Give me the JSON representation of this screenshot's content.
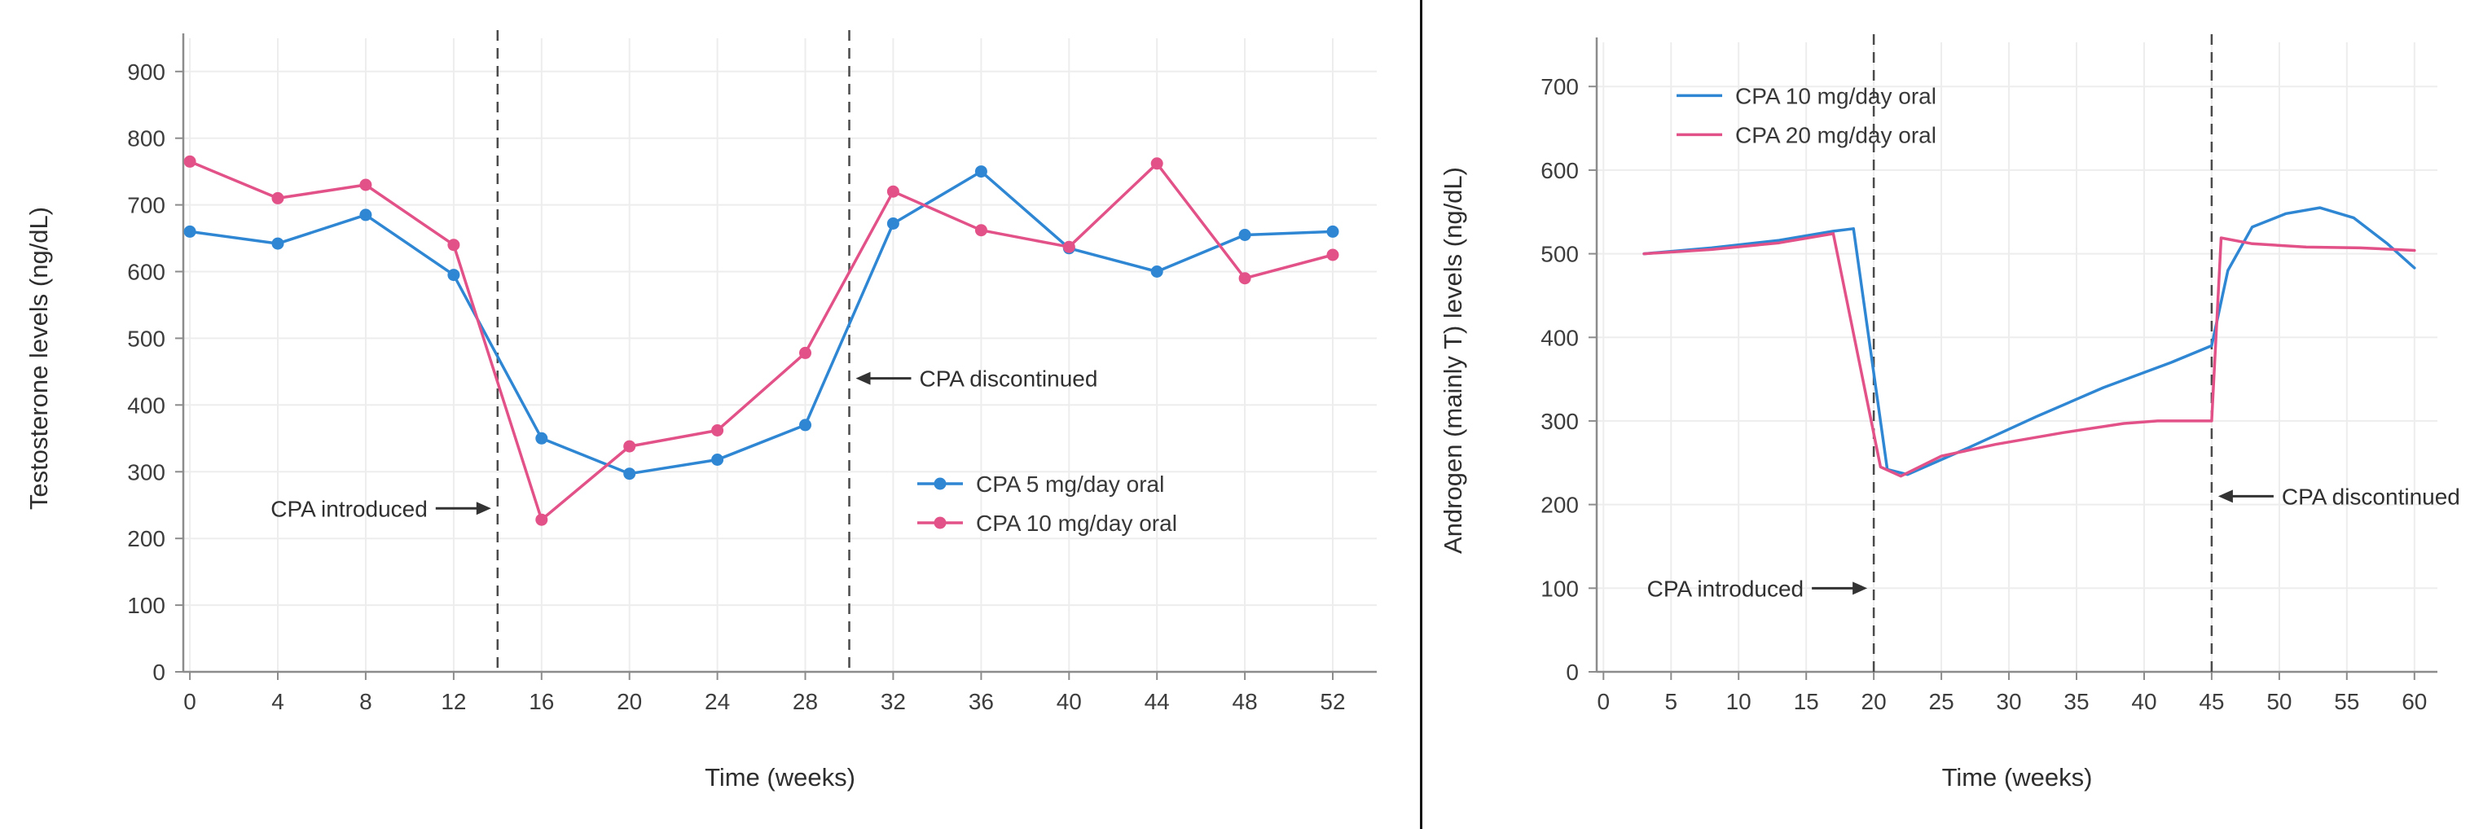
{
  "page": {
    "background": "#ffffff",
    "divider_color": "#111111"
  },
  "chart_data": [
    {
      "id": "testosterone-chart",
      "type": "line",
      "title": "",
      "xlabel": "Time (weeks)",
      "ylabel": "Testosterone levels (ng/dL)",
      "xlim": [
        -0.3,
        54.0
      ],
      "ylim": [
        0,
        940
      ],
      "xticks": [
        0,
        4,
        8,
        12,
        16,
        20,
        24,
        28,
        32,
        36,
        40,
        44,
        48,
        52
      ],
      "yticks": [
        0,
        100,
        200,
        300,
        400,
        500,
        600,
        700,
        800,
        900
      ],
      "grid": true,
      "legend": {
        "position": "inside-lower-right",
        "fx": 0.615,
        "fy": 0.7
      },
      "series": [
        {
          "name": "CPA 5 mg/day oral",
          "color": "#2f87d4",
          "markers": true,
          "x": [
            0,
            4,
            8,
            12,
            16,
            20,
            24,
            28,
            32,
            36,
            40,
            44,
            48,
            52
          ],
          "y": [
            660,
            642,
            685,
            595,
            350,
            297,
            318,
            370,
            672,
            750,
            635,
            600,
            655,
            660
          ]
        },
        {
          "name": "CPA 10 mg/day oral",
          "color": "#e25288",
          "markers": true,
          "x": [
            0,
            4,
            8,
            12,
            16,
            20,
            24,
            28,
            32,
            36,
            40,
            44,
            48,
            52
          ],
          "y": [
            765,
            710,
            730,
            640,
            228,
            338,
            362,
            478,
            720,
            662,
            637,
            762,
            590,
            625
          ]
        }
      ],
      "vlines": [
        {
          "x": 14,
          "label": "CPA introduced"
        },
        {
          "x": 30,
          "label": "CPA discontinued"
        }
      ],
      "annotations": [
        {
          "text": "CPA introduced",
          "x": 14,
          "y": 245,
          "side": "left"
        },
        {
          "text": "CPA discontinued",
          "x": 30,
          "y": 440,
          "side": "right"
        }
      ]
    },
    {
      "id": "androgen-chart",
      "type": "line",
      "title": "",
      "xlabel": "Time (weeks)",
      "ylabel": "Androgen (mainly T) levels (ng/dL)",
      "xlim": [
        -0.5,
        61.7
      ],
      "ylim": [
        0,
        745
      ],
      "xticks": [
        0,
        5,
        10,
        15,
        20,
        25,
        30,
        35,
        40,
        45,
        50,
        55,
        60
      ],
      "yticks": [
        0,
        100,
        200,
        300,
        400,
        500,
        600,
        700
      ],
      "grid": true,
      "legend": {
        "position": "inside-upper-left",
        "fx": 0.095,
        "fy": 0.075
      },
      "series": [
        {
          "name": "CPA 10 mg/day oral",
          "color": "#2f87d4",
          "markers": false,
          "x": [
            3,
            8,
            13,
            17,
            18.5,
            21,
            22.5,
            27,
            32,
            37,
            42,
            45,
            46.2,
            48,
            50.5,
            53,
            55.5,
            58,
            60
          ],
          "y": [
            500,
            507,
            516,
            527,
            530,
            242,
            236,
            268,
            305,
            340,
            370,
            390,
            480,
            532,
            548,
            555,
            543,
            512,
            483
          ]
        },
        {
          "name": "CPA 20 mg/day oral",
          "color": "#e25288",
          "markers": false,
          "x": [
            3,
            8,
            13,
            17,
            20.5,
            22,
            25,
            29,
            34,
            38.5,
            41,
            45,
            45.7,
            48,
            52,
            56,
            60
          ],
          "y": [
            500,
            505,
            513,
            524,
            245,
            234,
            258,
            272,
            286,
            297,
            300,
            300,
            519,
            512,
            508,
            507,
            504
          ]
        }
      ],
      "vlines": [
        {
          "x": 20,
          "label": "CPA introduced"
        },
        {
          "x": 45,
          "label": "CPA discontinued"
        }
      ],
      "annotations": [
        {
          "text": "CPA introduced",
          "x": 20,
          "y": 100,
          "side": "left"
        },
        {
          "text": "CPA discontinued",
          "x": 45,
          "y": 210,
          "side": "right"
        }
      ]
    }
  ]
}
